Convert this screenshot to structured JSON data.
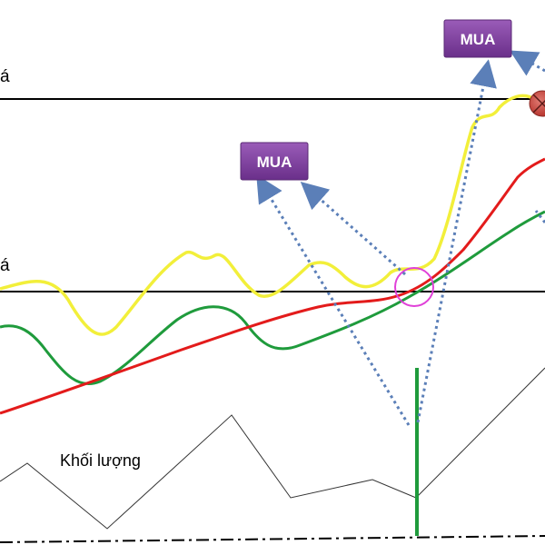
{
  "labels": {
    "upper_level": "á",
    "lower_level": "á",
    "volume": "Khối lượng"
  },
  "callouts": {
    "buy_top": "MUA",
    "buy_mid": "MUA"
  },
  "colors": {
    "price_line": "#f2ef3a",
    "ma_red": "#e31b1b",
    "ma_green": "#1f9b3c",
    "volume_line": "#333333",
    "volume_spike": "#1f9b3c",
    "arrow": "#5b7fb8",
    "callout_fill": "#7b3f99",
    "crossover_circle": "#e040d8",
    "exit_marker": "#c9473f"
  },
  "markers": {
    "crossover": "crossover-circle",
    "exit": "x-circle-icon"
  }
}
